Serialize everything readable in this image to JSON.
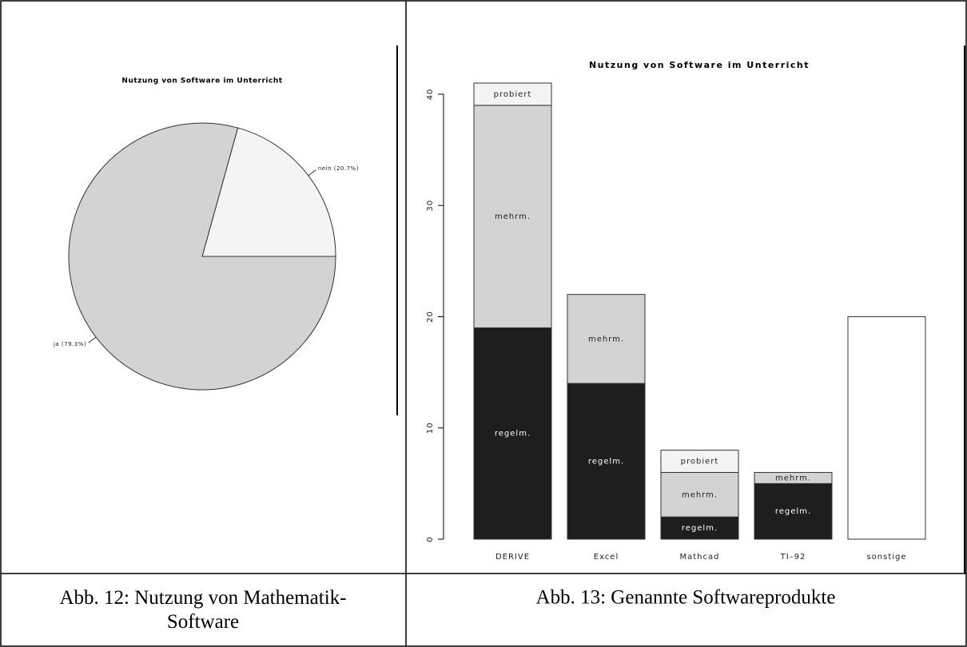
{
  "chart_data": [
    {
      "type": "pie",
      "title": "Nutzung von Software im Unterricht",
      "categories": [
        "nein (20.7%)",
        "ja (79.3%)"
      ],
      "values": [
        20.7,
        79.3
      ],
      "colors": [
        "#f4f4f4",
        "#d3d3d3"
      ]
    },
    {
      "type": "stacked-bar",
      "title": "Nutzung von Software im Unterricht",
      "categories": [
        "DERIVE",
        "Excel",
        "Mathcad",
        "TI–92",
        "sonstige"
      ],
      "series": [
        {
          "name": "regelm.",
          "color": "#1e1e1e",
          "values": [
            19,
            14,
            2,
            5,
            null
          ]
        },
        {
          "name": "mehrm.",
          "color": "#d3d3d3",
          "values": [
            20,
            8,
            4,
            1,
            null
          ]
        },
        {
          "name": "probiert",
          "color": "#f4f4f4",
          "values": [
            2,
            null,
            2,
            null,
            null
          ]
        },
        {
          "color": "#ffffff",
          "values": [
            null,
            null,
            null,
            null,
            20
          ]
        }
      ],
      "ylim": [
        0,
        41
      ],
      "yticks": [
        0,
        10,
        20,
        30,
        40
      ]
    }
  ],
  "captions": [
    "Abb. 12: Nutzung von Mathematik-Software",
    "Abb. 13: Genannte Softwareprodukte"
  ]
}
